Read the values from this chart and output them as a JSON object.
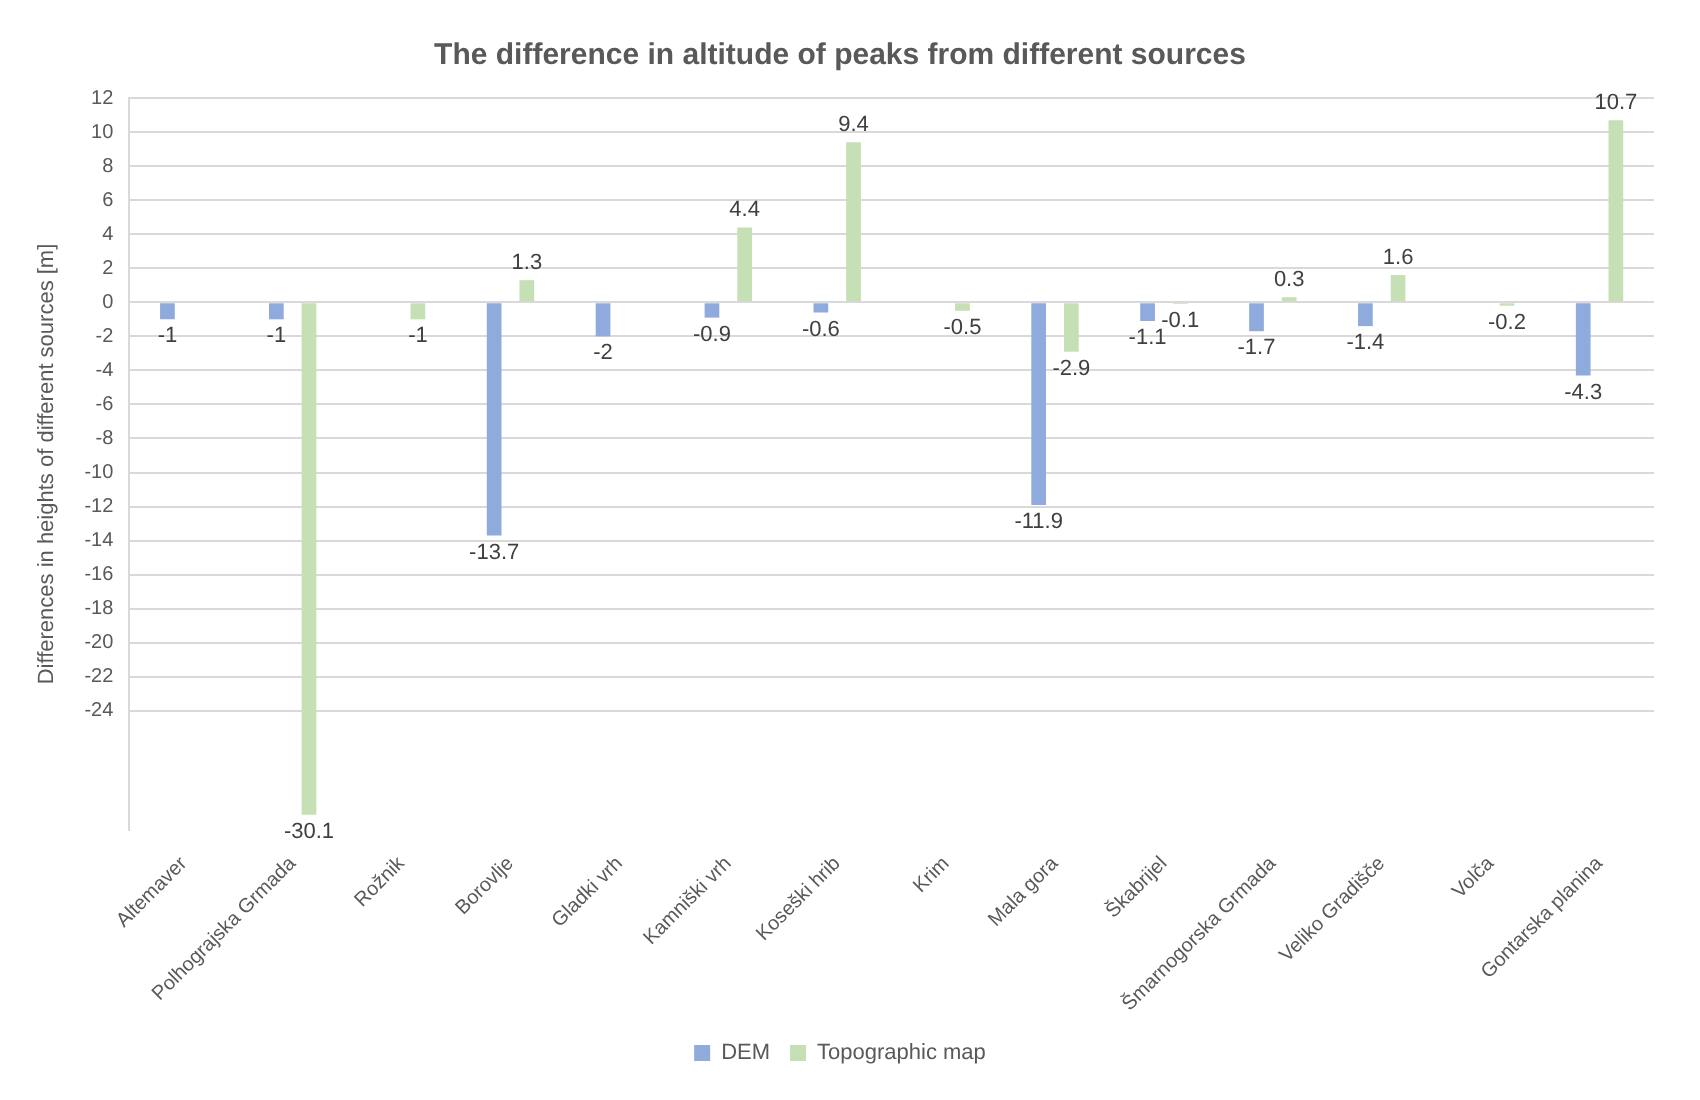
{
  "chart_data": {
    "type": "bar",
    "title": "The difference in altitude of peaks from different sources",
    "ylabel": "Differences in heights of different sources [m]",
    "categories": [
      "Altemaver",
      "Polhograjska Grmada",
      "Rožnik",
      "Borovlje",
      "Gladki vrh",
      "Kamniški vrh",
      "Koseški hrib",
      "Krim",
      "Mala gora",
      "Škabrijel",
      "Šmarnogorska Grmada",
      "Veliko Gradišče",
      "Volča",
      "Gontarska planina"
    ],
    "series": [
      {
        "name": "DEM",
        "color": "#8faadc",
        "values": [
          -1,
          -1,
          null,
          -13.7,
          -2,
          -0.9,
          -0.6,
          null,
          -11.9,
          -1.1,
          -1.7,
          -1.4,
          null,
          -4.3
        ]
      },
      {
        "name": "Topographic map",
        "color": "#c5e0b4",
        "values": [
          null,
          -30.1,
          -1,
          1.3,
          null,
          4.4,
          9.4,
          -0.5,
          -2.9,
          -0.1,
          0.3,
          1.6,
          -0.2,
          10.7
        ]
      }
    ],
    "ylim": [
      -31,
      12
    ],
    "yticks": [
      -24,
      -22,
      -20,
      -18,
      -16,
      -14,
      -12,
      -10,
      -8,
      -6,
      -4,
      -2,
      0,
      2,
      4,
      6,
      8,
      10,
      12
    ],
    "grid": "y",
    "legend": "bottom",
    "data_labels": true
  }
}
